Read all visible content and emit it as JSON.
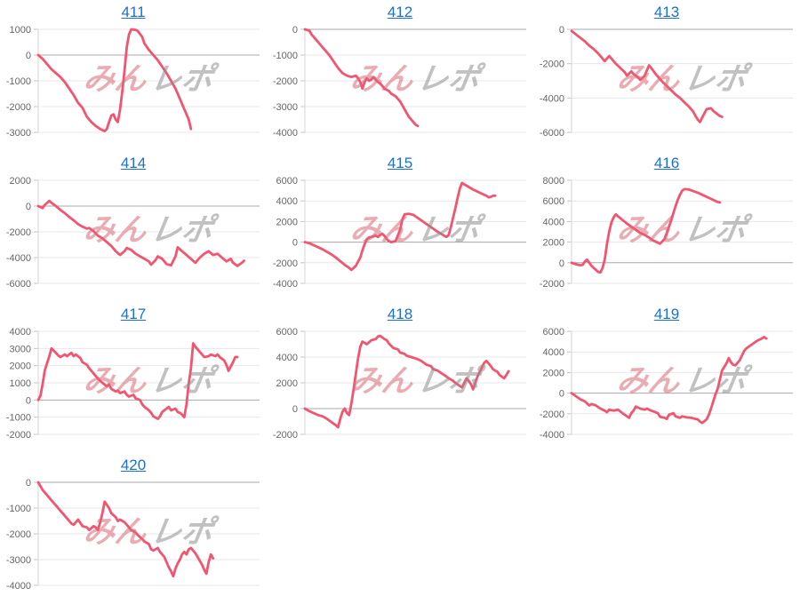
{
  "watermark": {
    "text_pink": "みん",
    "text_gray": "レポ",
    "pink": "#eba6ab",
    "gray": "#b0b0b0"
  },
  "style": {
    "line_color": "#f3546f",
    "grid_color": "#e7e7e7",
    "zero_line_color": "#a8a8a8",
    "tick_color": "#c4c4c4",
    "axis_line_color": "#d6d6d6",
    "tick_label_color": "#666666",
    "link_color": "#1b6fd2"
  },
  "chart_data": [
    {
      "type": "line",
      "title": "411",
      "ylim": [
        -3000,
        1000
      ],
      "yticks": [
        1000,
        0,
        -1000,
        -2000,
        -3000
      ],
      "x": [
        0,
        0.02,
        0.04,
        0.06,
        0.08,
        0.1,
        0.12,
        0.14,
        0.16,
        0.18,
        0.2,
        0.22,
        0.24,
        0.26,
        0.28,
        0.3,
        0.31,
        0.32,
        0.33,
        0.34,
        0.35,
        0.36,
        0.37,
        0.38,
        0.39,
        0.4,
        0.41,
        0.42,
        0.44,
        0.45,
        0.47,
        0.48,
        0.5,
        0.52,
        0.54,
        0.56,
        0.58,
        0.6,
        0.62,
        0.64,
        0.66,
        0.68,
        0.69
      ],
      "values": [
        0,
        -150,
        -350,
        -550,
        -700,
        -850,
        -1050,
        -1300,
        -1550,
        -1850,
        -2050,
        -2400,
        -2600,
        -2750,
        -2870,
        -2950,
        -2870,
        -2600,
        -2350,
        -2300,
        -2500,
        -2600,
        -2100,
        -1400,
        -600,
        300,
        800,
        1000,
        980,
        930,
        700,
        450,
        200,
        0,
        -200,
        -450,
        -700,
        -1000,
        -1300,
        -1700,
        -2100,
        -2500,
        -2870
      ]
    },
    {
      "type": "line",
      "title": "412",
      "ylim": [
        -4000,
        0
      ],
      "yticks": [
        0,
        -1000,
        -2000,
        -3000,
        -4000
      ],
      "x": [
        0,
        0.02,
        0.03,
        0.05,
        0.07,
        0.09,
        0.11,
        0.13,
        0.15,
        0.17,
        0.19,
        0.21,
        0.23,
        0.24,
        0.25,
        0.26,
        0.27,
        0.28,
        0.29,
        0.3,
        0.31,
        0.32,
        0.33,
        0.34,
        0.35,
        0.36,
        0.38,
        0.39,
        0.4,
        0.41,
        0.42,
        0.43,
        0.44,
        0.45,
        0.46,
        0.47,
        0.48,
        0.49,
        0.5,
        0.51
      ],
      "values": [
        0,
        -50,
        -200,
        -400,
        -600,
        -800,
        -1000,
        -1250,
        -1500,
        -1700,
        -1800,
        -1850,
        -1800,
        -1900,
        -2050,
        -2300,
        -2050,
        -1900,
        -2000,
        -1950,
        -1850,
        -1950,
        -2050,
        -2100,
        -2200,
        -2300,
        -2400,
        -2500,
        -2550,
        -2600,
        -2700,
        -2800,
        -2950,
        -3100,
        -3250,
        -3400,
        -3500,
        -3600,
        -3700,
        -3750
      ]
    },
    {
      "type": "line",
      "title": "413",
      "ylim": [
        -6000,
        0
      ],
      "yticks": [
        0,
        -2000,
        -4000,
        -6000
      ],
      "x": [
        0,
        0.02,
        0.04,
        0.06,
        0.08,
        0.1,
        0.12,
        0.14,
        0.15,
        0.17,
        0.18,
        0.2,
        0.22,
        0.24,
        0.25,
        0.27,
        0.28,
        0.3,
        0.31,
        0.33,
        0.34,
        0.35,
        0.36,
        0.38,
        0.4,
        0.41,
        0.43,
        0.45,
        0.47,
        0.49,
        0.51,
        0.53,
        0.55,
        0.56,
        0.57,
        0.58,
        0.6,
        0.61,
        0.63,
        0.64,
        0.66,
        0.67,
        0.68
      ],
      "values": [
        -100,
        -300,
        -500,
        -700,
        -950,
        -1150,
        -1400,
        -1700,
        -1850,
        -1550,
        -1700,
        -2000,
        -2250,
        -2500,
        -2700,
        -2450,
        -2600,
        -2800,
        -2950,
        -2700,
        -2400,
        -2100,
        -2250,
        -2600,
        -2900,
        -3050,
        -3300,
        -3550,
        -3800,
        -4000,
        -4250,
        -4500,
        -4800,
        -5050,
        -5250,
        -5400,
        -4900,
        -4650,
        -4600,
        -4750,
        -4950,
        -5050,
        -5100
      ]
    },
    {
      "type": "line",
      "title": "414",
      "ylim": [
        -6000,
        2000
      ],
      "yticks": [
        2000,
        0,
        -2000,
        -4000,
        -6000
      ],
      "x": [
        0,
        0.02,
        0.03,
        0.05,
        0.06,
        0.08,
        0.1,
        0.12,
        0.14,
        0.16,
        0.18,
        0.2,
        0.22,
        0.23,
        0.25,
        0.27,
        0.29,
        0.31,
        0.33,
        0.35,
        0.37,
        0.39,
        0.4,
        0.42,
        0.44,
        0.46,
        0.48,
        0.5,
        0.51,
        0.53,
        0.54,
        0.56,
        0.58,
        0.6,
        0.62,
        0.63,
        0.65,
        0.67,
        0.69,
        0.71,
        0.73,
        0.75,
        0.77,
        0.79,
        0.81,
        0.83,
        0.85,
        0.87,
        0.88,
        0.9,
        0.92,
        0.93
      ],
      "values": [
        0,
        -150,
        100,
        400,
        250,
        0,
        -300,
        -550,
        -850,
        -1100,
        -1400,
        -1600,
        -1750,
        -1700,
        -1950,
        -2300,
        -2500,
        -2800,
        -3100,
        -3500,
        -3800,
        -3500,
        -3250,
        -3400,
        -3700,
        -3900,
        -4100,
        -4300,
        -4550,
        -4200,
        -3900,
        -4100,
        -4500,
        -4600,
        -3900,
        -3200,
        -3500,
        -3800,
        -4100,
        -4400,
        -4000,
        -3700,
        -3500,
        -3800,
        -3700,
        -4000,
        -4300,
        -4100,
        -4400,
        -4650,
        -4400,
        -4250
      ]
    },
    {
      "type": "line",
      "title": "415",
      "ylim": [
        -4000,
        6000
      ],
      "yticks": [
        6000,
        4000,
        2000,
        0,
        -2000,
        -4000
      ],
      "x": [
        0,
        0.02,
        0.04,
        0.06,
        0.08,
        0.1,
        0.12,
        0.14,
        0.16,
        0.18,
        0.2,
        0.21,
        0.23,
        0.25,
        0.26,
        0.27,
        0.28,
        0.29,
        0.31,
        0.32,
        0.33,
        0.34,
        0.35,
        0.36,
        0.37,
        0.38,
        0.39,
        0.41,
        0.43,
        0.44,
        0.45,
        0.47,
        0.49,
        0.5,
        0.52,
        0.54,
        0.56,
        0.58,
        0.6,
        0.62,
        0.63,
        0.64,
        0.65,
        0.66,
        0.67,
        0.68,
        0.69,
        0.7,
        0.71,
        0.72,
        0.74,
        0.76,
        0.78,
        0.8,
        0.82,
        0.83,
        0.84,
        0.85,
        0.86
      ],
      "values": [
        0,
        -100,
        -300,
        -500,
        -700,
        -950,
        -1200,
        -1500,
        -1850,
        -2200,
        -2500,
        -2700,
        -2300,
        -1500,
        -800,
        -200,
        300,
        450,
        550,
        650,
        500,
        700,
        800,
        600,
        300,
        100,
        0,
        100,
        1200,
        2200,
        2700,
        2750,
        2650,
        2500,
        2200,
        1900,
        1600,
        1300,
        1000,
        750,
        600,
        500,
        700,
        1500,
        2400,
        3300,
        4300,
        5200,
        5750,
        5600,
        5350,
        5100,
        4900,
        4700,
        4500,
        4350,
        4400,
        4500,
        4500
      ]
    },
    {
      "type": "line",
      "title": "416",
      "ylim": [
        -2000,
        8000
      ],
      "yticks": [
        8000,
        6000,
        4000,
        2000,
        0,
        -2000
      ],
      "x": [
        0,
        0.02,
        0.04,
        0.05,
        0.06,
        0.07,
        0.08,
        0.09,
        0.1,
        0.11,
        0.12,
        0.13,
        0.14,
        0.15,
        0.16,
        0.17,
        0.18,
        0.19,
        0.2,
        0.21,
        0.23,
        0.25,
        0.27,
        0.29,
        0.31,
        0.33,
        0.35,
        0.37,
        0.39,
        0.4,
        0.42,
        0.43,
        0.44,
        0.45,
        0.46,
        0.47,
        0.48,
        0.49,
        0.5,
        0.51,
        0.53,
        0.55,
        0.57,
        0.59,
        0.61,
        0.63,
        0.65,
        0.66,
        0.67
      ],
      "values": [
        0,
        -150,
        -250,
        -200,
        100,
        300,
        0,
        -300,
        -500,
        -700,
        -900,
        -950,
        -500,
        300,
        1800,
        3000,
        3900,
        4400,
        4700,
        4500,
        4150,
        3800,
        3500,
        3200,
        2900,
        2700,
        2450,
        2150,
        1950,
        1850,
        2300,
        2900,
        3500,
        4100,
        4800,
        5500,
        6100,
        6600,
        7000,
        7150,
        7100,
        6950,
        6800,
        6600,
        6400,
        6200,
        6000,
        5900,
        5850
      ]
    },
    {
      "type": "line",
      "title": "417",
      "ylim": [
        -2000,
        4000
      ],
      "yticks": [
        4000,
        3000,
        2000,
        1000,
        0,
        -1000,
        -2000
      ],
      "x": [
        0,
        0.01,
        0.02,
        0.03,
        0.05,
        0.06,
        0.08,
        0.09,
        0.1,
        0.12,
        0.13,
        0.15,
        0.16,
        0.17,
        0.19,
        0.2,
        0.22,
        0.23,
        0.24,
        0.26,
        0.27,
        0.29,
        0.31,
        0.32,
        0.33,
        0.35,
        0.36,
        0.37,
        0.39,
        0.4,
        0.41,
        0.43,
        0.44,
        0.46,
        0.47,
        0.48,
        0.5,
        0.51,
        0.52,
        0.54,
        0.55,
        0.56,
        0.58,
        0.59,
        0.6,
        0.62,
        0.63,
        0.64,
        0.65,
        0.66,
        0.67,
        0.68,
        0.69,
        0.7,
        0.71,
        0.72,
        0.74,
        0.75,
        0.77,
        0.78,
        0.8,
        0.81,
        0.82,
        0.84,
        0.85,
        0.86,
        0.88,
        0.89,
        0.9
      ],
      "values": [
        0,
        250,
        950,
        1750,
        2550,
        3000,
        2750,
        2600,
        2500,
        2650,
        2550,
        2750,
        2550,
        2650,
        2450,
        2200,
        2050,
        1850,
        1700,
        1400,
        1250,
        1000,
        800,
        900,
        650,
        500,
        550,
        400,
        500,
        300,
        200,
        300,
        100,
        0,
        -250,
        -400,
        -600,
        -750,
        -950,
        -1100,
        -950,
        -700,
        -500,
        -400,
        -600,
        -500,
        -700,
        -750,
        -850,
        -1000,
        -250,
        950,
        1850,
        3300,
        3100,
        2950,
        2650,
        2500,
        2550,
        2650,
        2550,
        2650,
        2500,
        2300,
        2050,
        1700,
        2200,
        2500,
        2500
      ]
    },
    {
      "type": "line",
      "title": "418",
      "ylim": [
        -2000,
        6000
      ],
      "yticks": [
        6000,
        4000,
        2000,
        0,
        -2000
      ],
      "x": [
        0,
        0.02,
        0.04,
        0.06,
        0.08,
        0.1,
        0.12,
        0.14,
        0.15,
        0.16,
        0.17,
        0.18,
        0.19,
        0.2,
        0.21,
        0.22,
        0.23,
        0.24,
        0.25,
        0.26,
        0.28,
        0.29,
        0.3,
        0.32,
        0.33,
        0.34,
        0.36,
        0.37,
        0.38,
        0.4,
        0.42,
        0.43,
        0.45,
        0.46,
        0.48,
        0.5,
        0.52,
        0.53,
        0.55,
        0.57,
        0.58,
        0.6,
        0.62,
        0.63,
        0.65,
        0.67,
        0.68,
        0.7,
        0.71,
        0.72,
        0.73,
        0.74,
        0.75,
        0.76,
        0.77,
        0.78,
        0.79,
        0.8,
        0.81,
        0.82,
        0.84,
        0.85,
        0.87,
        0.88,
        0.9,
        0.91,
        0.92
      ],
      "values": [
        0,
        -200,
        -350,
        -500,
        -600,
        -800,
        -1050,
        -1300,
        -1450,
        -800,
        -250,
        0,
        -350,
        -500,
        400,
        1500,
        2700,
        3900,
        4800,
        5200,
        5000,
        5150,
        5300,
        5400,
        5600,
        5650,
        5400,
        5300,
        5050,
        4700,
        4600,
        4350,
        4250,
        4100,
        4000,
        3900,
        3750,
        3650,
        3400,
        3300,
        3050,
        2950,
        2700,
        2600,
        2350,
        2150,
        2000,
        1750,
        1650,
        2000,
        2350,
        2150,
        1900,
        1500,
        2000,
        2500,
        2850,
        3200,
        3550,
        3700,
        3300,
        3050,
        2850,
        2600,
        2350,
        2600,
        2900
      ]
    },
    {
      "type": "line",
      "title": "419",
      "ylim": [
        -4000,
        6000
      ],
      "yticks": [
        6000,
        4000,
        2000,
        0,
        -2000,
        -4000
      ],
      "x": [
        0,
        0.02,
        0.04,
        0.06,
        0.08,
        0.09,
        0.11,
        0.13,
        0.15,
        0.16,
        0.17,
        0.19,
        0.21,
        0.23,
        0.24,
        0.26,
        0.27,
        0.28,
        0.29,
        0.31,
        0.33,
        0.34,
        0.36,
        0.38,
        0.39,
        0.4,
        0.42,
        0.43,
        0.44,
        0.46,
        0.47,
        0.49,
        0.5,
        0.52,
        0.54,
        0.56,
        0.57,
        0.58,
        0.59,
        0.61,
        0.62,
        0.63,
        0.64,
        0.65,
        0.66,
        0.67,
        0.68,
        0.7,
        0.71,
        0.72,
        0.73,
        0.74,
        0.76,
        0.77,
        0.78,
        0.79,
        0.8,
        0.82,
        0.84,
        0.86,
        0.87,
        0.88
      ],
      "values": [
        0,
        -300,
        -600,
        -800,
        -1200,
        -1050,
        -1200,
        -1500,
        -1700,
        -1850,
        -1600,
        -1700,
        -1600,
        -1950,
        -2100,
        -2400,
        -1950,
        -1700,
        -1300,
        -1500,
        -1600,
        -1500,
        -1700,
        -1850,
        -1950,
        -2300,
        -2400,
        -2500,
        -2100,
        -1950,
        -2250,
        -2400,
        -2250,
        -2350,
        -2400,
        -2500,
        -2550,
        -2750,
        -2900,
        -2550,
        -2100,
        -1500,
        -800,
        -150,
        400,
        1300,
        2200,
        2900,
        3400,
        3000,
        2750,
        2700,
        3200,
        3650,
        4100,
        4350,
        4500,
        4800,
        5100,
        5300,
        5450,
        5300
      ]
    },
    {
      "type": "line",
      "title": "420",
      "ylim": [
        -4000,
        0
      ],
      "yticks": [
        0,
        -1000,
        -2000,
        -3000,
        -4000
      ],
      "x": [
        0,
        0.02,
        0.04,
        0.06,
        0.08,
        0.1,
        0.12,
        0.13,
        0.15,
        0.16,
        0.17,
        0.18,
        0.2,
        0.22,
        0.23,
        0.25,
        0.26,
        0.27,
        0.28,
        0.29,
        0.3,
        0.32,
        0.33,
        0.35,
        0.36,
        0.37,
        0.39,
        0.4,
        0.42,
        0.44,
        0.45,
        0.47,
        0.48,
        0.5,
        0.51,
        0.52,
        0.54,
        0.55,
        0.57,
        0.58,
        0.59,
        0.6,
        0.61,
        0.62,
        0.63,
        0.64,
        0.65,
        0.66,
        0.67,
        0.68,
        0.69,
        0.71,
        0.72,
        0.73,
        0.74,
        0.75,
        0.76,
        0.77,
        0.78,
        0.79
      ],
      "values": [
        0,
        -300,
        -500,
        -700,
        -900,
        -1100,
        -1300,
        -1400,
        -1600,
        -1650,
        -1550,
        -1450,
        -1700,
        -1750,
        -1850,
        -1700,
        -1750,
        -1850,
        -1550,
        -1200,
        -750,
        -1000,
        -1200,
        -1350,
        -1500,
        -1450,
        -1550,
        -1650,
        -1850,
        -1950,
        -2050,
        -2200,
        -2300,
        -2400,
        -2600,
        -2650,
        -2550,
        -2700,
        -2900,
        -3100,
        -3300,
        -3450,
        -3650,
        -3350,
        -3150,
        -3000,
        -2800,
        -2700,
        -2800,
        -2600,
        -2550,
        -2750,
        -2900,
        -3050,
        -3200,
        -3400,
        -3550,
        -3100,
        -2800,
        -2950
      ]
    }
  ]
}
